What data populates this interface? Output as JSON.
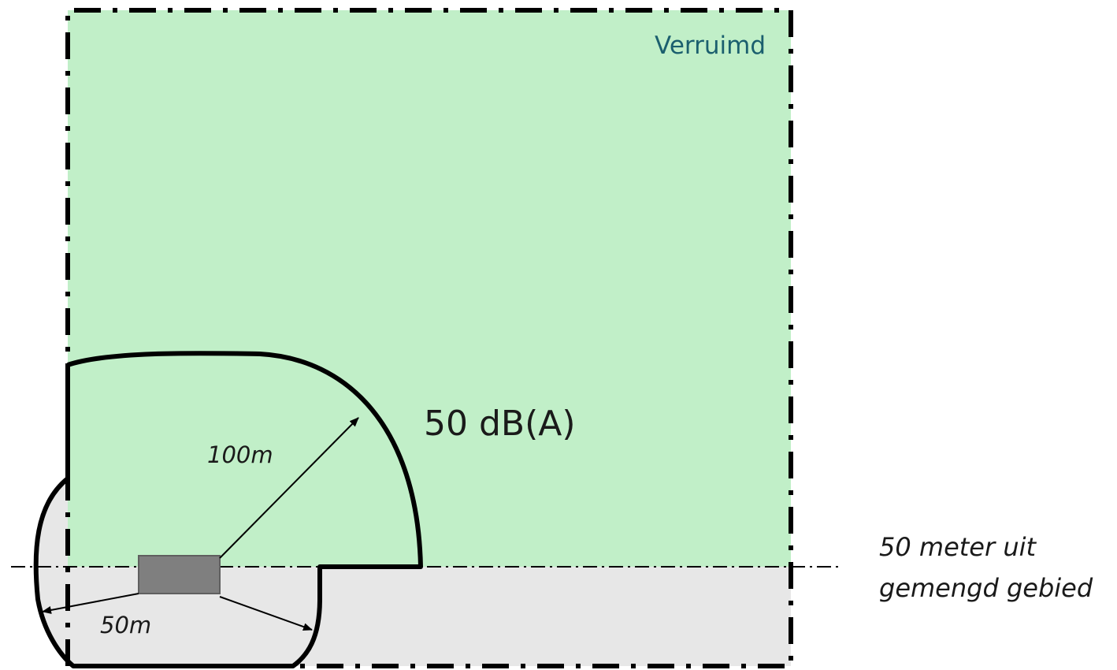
{
  "zone_label": "Verruimd",
  "level_label": "50 dB(A)",
  "radius_large_label": "100m",
  "radius_small_label": "50m",
  "boundary_note": {
    "line1": "50 meter uit",
    "line2": "gemengd gebied"
  },
  "colors": {
    "verruimd_zone": "#c1efc8",
    "mixed_zone": "#e7e7e7",
    "source": "#7f7f7f",
    "outline": "#000000",
    "zone_text": "#1b5f6e"
  }
}
